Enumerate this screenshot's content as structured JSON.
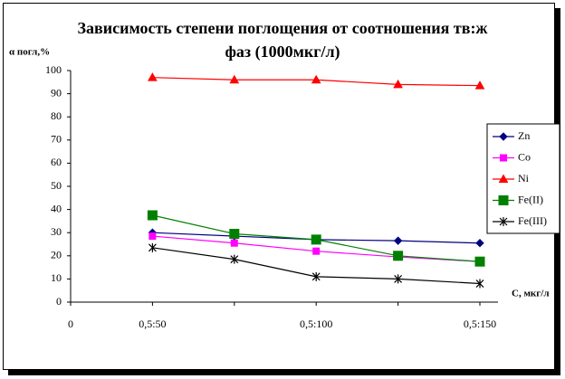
{
  "chart_data": {
    "type": "line",
    "title": "Зависимость степени поглощения от соотношения тв:ж фаз (1000мкг/л)",
    "y_label": "α погл,%",
    "x_label": "С, мкг/л",
    "categories": [
      "0",
      "0,5:50",
      null,
      "0,5:100",
      null,
      "0,5:150"
    ],
    "ylim": [
      0,
      100
    ],
    "yticks": [
      0,
      10,
      20,
      30,
      40,
      50,
      60,
      70,
      80,
      90,
      100
    ],
    "grid": false,
    "legend": "right",
    "series": [
      {
        "name": "Zn",
        "color": "#000080",
        "marker": "diamond",
        "values": [
          null,
          30,
          28.5,
          27,
          26.5,
          25.5
        ]
      },
      {
        "name": "Co",
        "color": "#ff00ff",
        "marker": "square",
        "values": [
          null,
          28.5,
          25.5,
          22,
          19.5,
          17.5
        ]
      },
      {
        "name": "Ni",
        "color": "#ff0000",
        "marker": "triangle",
        "values": [
          null,
          97,
          96,
          96,
          94,
          93.5
        ]
      },
      {
        "name": "Fe(II)",
        "color": "#008000",
        "marker": "bigsquare",
        "values": [
          null,
          37.5,
          29.5,
          27,
          20,
          17.5
        ]
      },
      {
        "name": "Fe(III)",
        "color": "#000000",
        "marker": "star",
        "values": [
          null,
          23.5,
          18.5,
          11,
          10,
          8
        ]
      }
    ]
  }
}
